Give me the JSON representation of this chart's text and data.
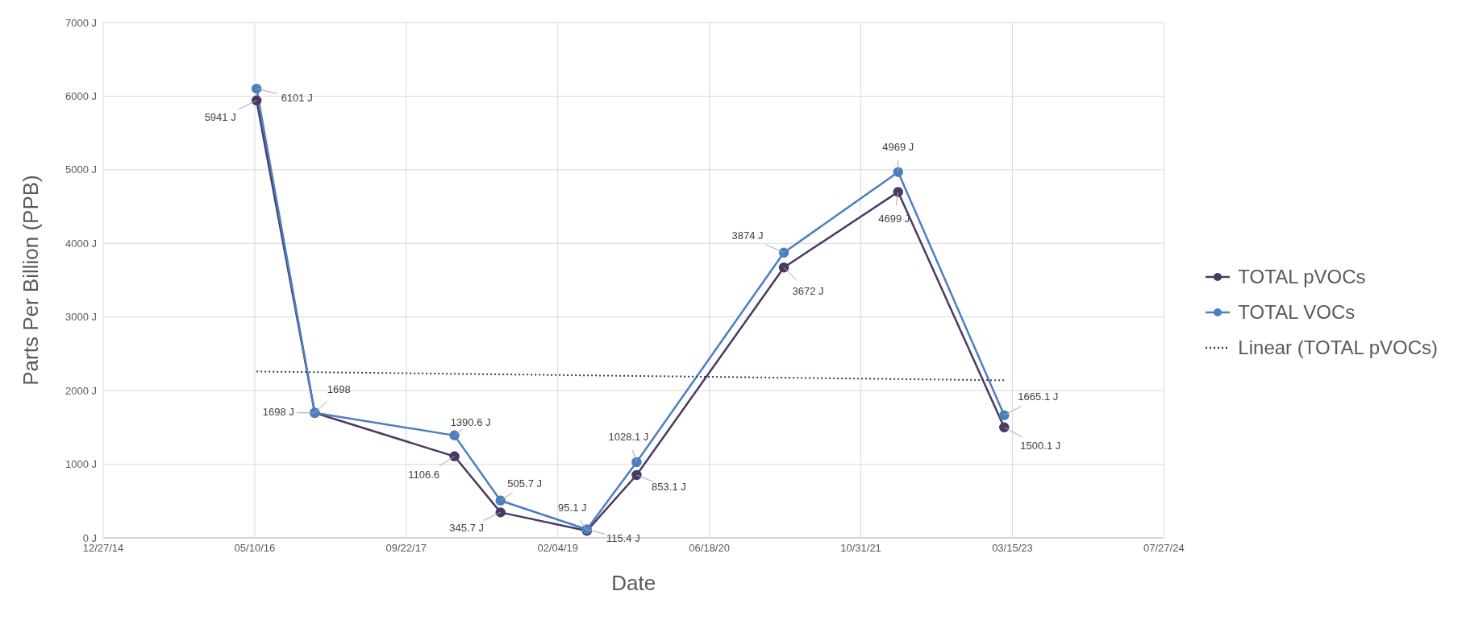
{
  "chart_data": {
    "type": "line",
    "xlabel": "Date",
    "ylabel": "Parts Per Billion (PPB)",
    "x": [
      "2016-05-16",
      "2016-11-24",
      "2018-02-28",
      "2018-07-30",
      "2019-05-11",
      "2019-10-22",
      "2021-02-19",
      "2022-03-03",
      "2023-02-16"
    ],
    "series": [
      {
        "name": "TOTAL pVOCs",
        "color": "#4a3a63",
        "values": [
          5941,
          1698,
          1106.6,
          345.7,
          95.1,
          853.1,
          3672,
          4699,
          1500.1
        ],
        "value_labels": [
          "5941 J",
          "1698 J",
          "1106.6",
          "345.7 J",
          "95.1 J",
          "853.1 J",
          "3672 J",
          "4699 J",
          "1500.1 J"
        ]
      },
      {
        "name": "TOTAL VOCs",
        "color": "#4a7fc1",
        "values": [
          6101,
          1698,
          1390.6,
          505.7,
          115.4,
          1028.1,
          3874,
          4969,
          1665.1
        ],
        "value_labels": [
          "6101 J",
          "1698",
          "1390.6 J",
          "505.7 J",
          "115.4 J",
          "1028.1 J",
          "3874 J",
          "4969 J",
          "1665.1 J"
        ]
      },
      {
        "name": "Linear (TOTAL pVOCs)",
        "type": "line",
        "color": "#3b3467",
        "line_style": "dotted",
        "marker": "none",
        "x": [
          "2016-05-16",
          "2023-02-16"
        ],
        "values": [
          2260,
          2140
        ]
      }
    ],
    "marker": "circle",
    "line_style": "solid",
    "grid": true,
    "legend": "right",
    "xlim": [
      "2014-12-27",
      "2024-07-27"
    ],
    "xticks": [
      {
        "value": "2014-12-27",
        "label": "12/27/14"
      },
      {
        "value": "2016-05-10",
        "label": "05/10/16"
      },
      {
        "value": "2017-09-22",
        "label": "09/22/17"
      },
      {
        "value": "2019-02-04",
        "label": "02/04/19"
      },
      {
        "value": "2020-06-18",
        "label": "06/18/20"
      },
      {
        "value": "2021-10-31",
        "label": "10/31/21"
      },
      {
        "value": "2023-03-15",
        "label": "03/15/23"
      },
      {
        "value": "2024-07-27",
        "label": "07/27/24"
      }
    ],
    "ylim": [
      0,
      7000
    ],
    "yticks": [
      {
        "value": 0,
        "label": "0 J"
      },
      {
        "value": 1000,
        "label": "1000 J"
      },
      {
        "value": 2000,
        "label": "2000 J"
      },
      {
        "value": 3000,
        "label": "3000 J"
      },
      {
        "value": 4000,
        "label": "4000 J"
      },
      {
        "value": 5000,
        "label": "5000 J"
      },
      {
        "value": 6000,
        "label": "6000 J"
      },
      {
        "value": 7000,
        "label": "7000 J"
      }
    ]
  }
}
